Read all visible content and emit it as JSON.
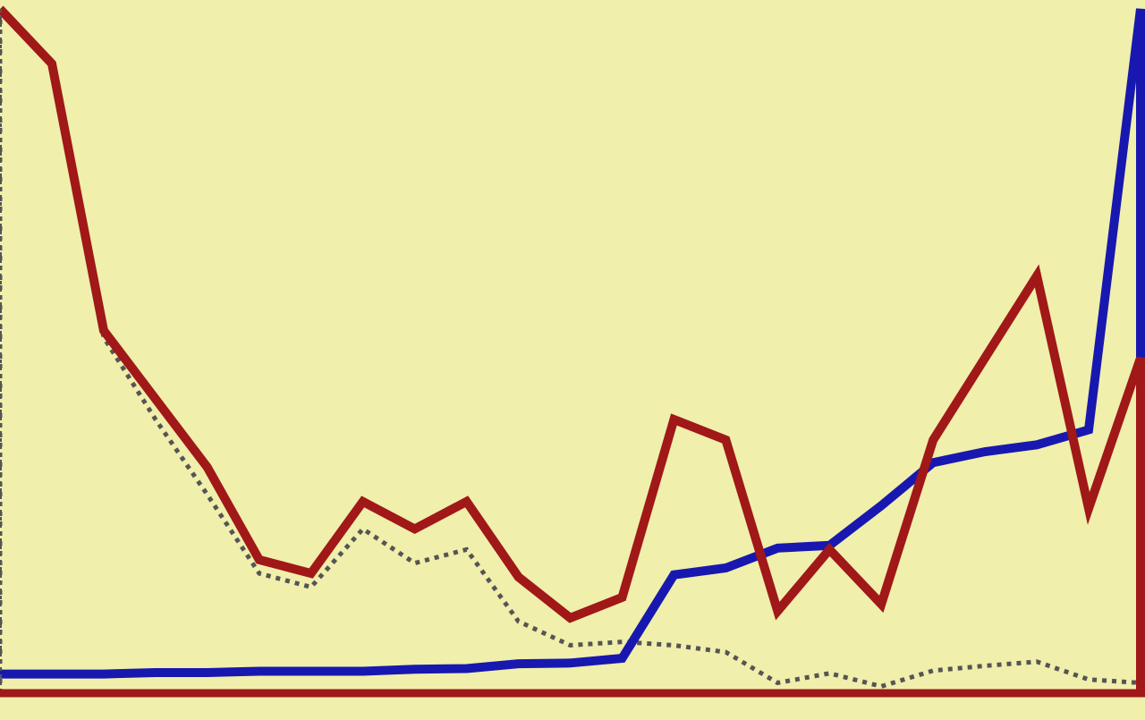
{
  "chart_data": {
    "type": "line",
    "title": "",
    "xlabel": "",
    "ylabel": "",
    "grid": false,
    "legend": "none",
    "background": "#f0efab",
    "x": [
      0,
      1,
      2,
      3,
      4,
      5,
      6,
      7,
      8,
      9,
      10,
      11,
      12,
      13,
      14,
      15,
      16,
      17,
      18,
      19,
      20,
      21,
      22
    ],
    "ylim": [
      0,
      100
    ],
    "series": [
      {
        "color": "#a01818",
        "style": "solid",
        "values": [
          100,
          92,
          53,
          43,
          33,
          19.5,
          17.5,
          28,
          24,
          28,
          17,
          11,
          14,
          40,
          37,
          12,
          21,
          13,
          37,
          49,
          61,
          27,
          49
        ],
        "drop_to_zero_at_end": true
      },
      {
        "color": "#1818b0",
        "style": "solid",
        "values": [
          2.8,
          2.8,
          2.8,
          3.0,
          3.0,
          3.2,
          3.2,
          3.2,
          3.5,
          3.6,
          4.3,
          4.4,
          5.1,
          17.3,
          18.3,
          21.2,
          21.6,
          27.4,
          33.7,
          35.3,
          36.3,
          38.5,
          100
        ],
        "drop_to_zero_at_end": true
      },
      {
        "color": "#555555",
        "style": "dotted",
        "values": [
          100,
          92,
          52,
          40,
          29,
          17.5,
          15.5,
          24,
          19,
          21,
          10.5,
          7,
          7.5,
          7,
          6,
          1.5,
          2.9,
          1,
          3.3,
          4,
          4.6,
          2,
          1.5
        ],
        "drop_to_zero_at_start": true
      }
    ]
  }
}
